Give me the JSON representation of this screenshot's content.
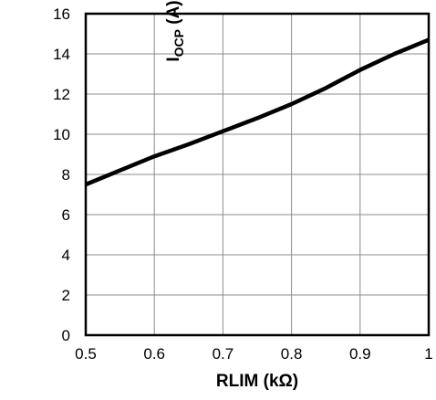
{
  "chart_data": {
    "type": "line",
    "title": "",
    "xlabel": "RLIM (kΩ)",
    "ylabel": {
      "main": "I",
      "sub": "OCP",
      "unit": " (A)"
    },
    "xlim": [
      0.5,
      1
    ],
    "ylim": [
      0,
      16
    ],
    "x_ticks": [
      "0.5",
      "0.6",
      "0.7",
      "0.8",
      "0.9",
      "1"
    ],
    "y_ticks": [
      "0",
      "2",
      "4",
      "6",
      "8",
      "10",
      "12",
      "14",
      "16"
    ],
    "grid": true,
    "series": [
      {
        "color": "#000000",
        "x": [
          0.5,
          0.55,
          0.6,
          0.65,
          0.7,
          0.75,
          0.8,
          0.85,
          0.9,
          0.95,
          1.0
        ],
        "y": [
          7.5,
          8.2,
          8.9,
          9.5,
          10.15,
          10.8,
          11.5,
          12.3,
          13.2,
          14.0,
          14.7
        ]
      }
    ]
  }
}
